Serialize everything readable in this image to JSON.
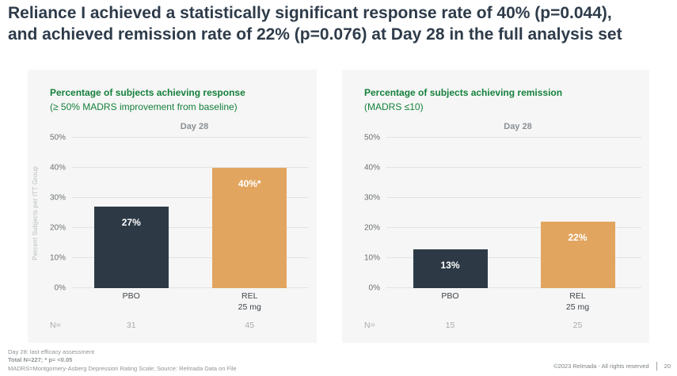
{
  "slide": {
    "title_line1": "Reliance I achieved a statistically significant response rate of 40% (p=0.044),",
    "title_line2": "and achieved remission rate of 22% (p=0.076) at Day 28 in the full analysis set"
  },
  "colors": {
    "title_text": "#2e3b4a",
    "heading_green": "#15803c",
    "panel_bg": "#f6f6f6",
    "bar_dark": "#2d3a46",
    "bar_orange": "#e2a55f"
  },
  "chart_data": [
    {
      "type": "bar",
      "title": "Percentage of subjects achieving response",
      "subtitle": "(≥ 50% MADRS improvement from baseline)",
      "group_label": "Day 28",
      "ylabel": "Percent Subjects per ITT Group",
      "ylim": [
        0,
        50
      ],
      "ytick_values": [
        0,
        10,
        20,
        30,
        40,
        50
      ],
      "ytick_labels": [
        "0%",
        "10%",
        "20%",
        "30%",
        "40%",
        "50%"
      ],
      "categories": [
        "PBO",
        "REL\n25 mg"
      ],
      "values": [
        27,
        40
      ],
      "bar_labels": [
        "27%",
        "40%*"
      ],
      "bar_colors": [
        "#2d3a46",
        "#e2a55f"
      ],
      "n_label": "N=",
      "n_values": [
        "31",
        "45"
      ],
      "grid": true,
      "legend": "none"
    },
    {
      "type": "bar",
      "title": "Percentage of subjects achieving remission",
      "subtitle": "(MADRS ≤10)",
      "group_label": "Day 28",
      "ylabel": "",
      "ylim": [
        0,
        50
      ],
      "ytick_values": [
        0,
        10,
        20,
        30,
        40,
        50
      ],
      "ytick_labels": [
        "0%",
        "10%",
        "20%",
        "30%",
        "40%",
        "50%"
      ],
      "categories": [
        "PBO",
        "REL\n25 mg"
      ],
      "values": [
        13,
        22
      ],
      "bar_labels": [
        "13%",
        "22%"
      ],
      "bar_colors": [
        "#2d3a46",
        "#e2a55f"
      ],
      "n_label": "N=",
      "n_values": [
        "15",
        "25"
      ],
      "grid": true,
      "legend": "none"
    }
  ],
  "footnotes": {
    "line1": "Day 28: last efficacy assessment",
    "line2": "Total N=227; * p= <0.05",
    "line3": "MADRS=Montgomery-Asberg Depression Rating Scale; Source: Relmada Data on File"
  },
  "footer": {
    "copyright": "©2023 Relmada - All rights reserved",
    "page_number": "20"
  }
}
